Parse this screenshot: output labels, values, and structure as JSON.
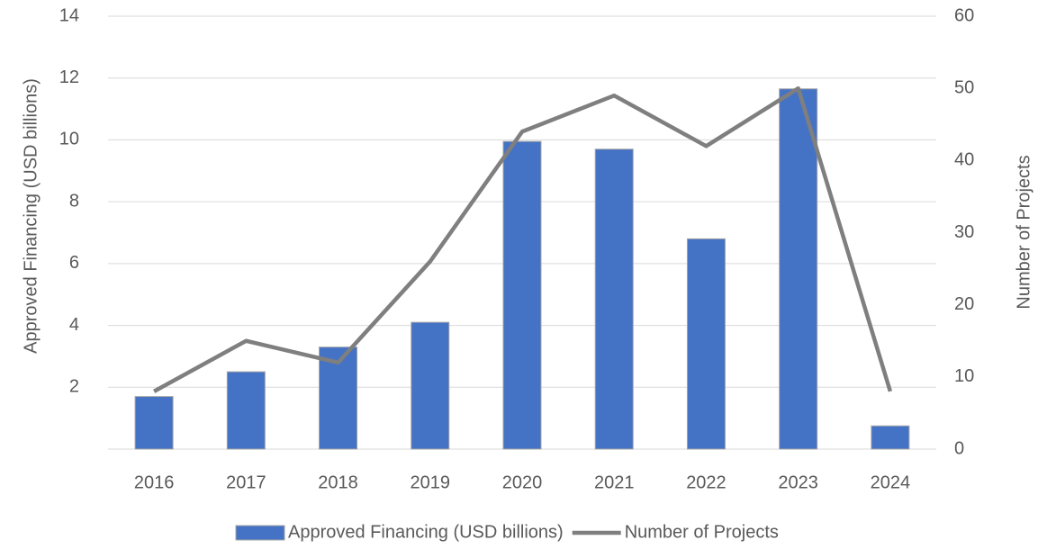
{
  "chart_data": {
    "type": "bar_line",
    "categories": [
      "2016",
      "2017",
      "2018",
      "2019",
      "2020",
      "2021",
      "2022",
      "2023",
      "2024"
    ],
    "series": [
      {
        "name": "Approved Financing (USD billions)",
        "type": "bar",
        "color": "#4472c4",
        "values": [
          1.7,
          2.5,
          3.3,
          4.1,
          9.95,
          9.7,
          6.8,
          11.65,
          0.75
        ]
      },
      {
        "name": "Number of Projects",
        "type": "line",
        "color": "#7f7f7f",
        "axis": "y2",
        "values": [
          8,
          15,
          12,
          26,
          44,
          49,
          42,
          50,
          8
        ]
      }
    ],
    "ylabel": "Approved Financing (USD billions)",
    "y2label": "Number of Projects",
    "ylim": [
      0,
      14
    ],
    "yticks": [
      2,
      4,
      6,
      8,
      10,
      12,
      14
    ],
    "y2lim": [
      0,
      60
    ],
    "y2ticks": [
      0,
      10,
      20,
      30,
      40,
      50,
      60
    ],
    "grid": true,
    "legend": "bottom"
  }
}
